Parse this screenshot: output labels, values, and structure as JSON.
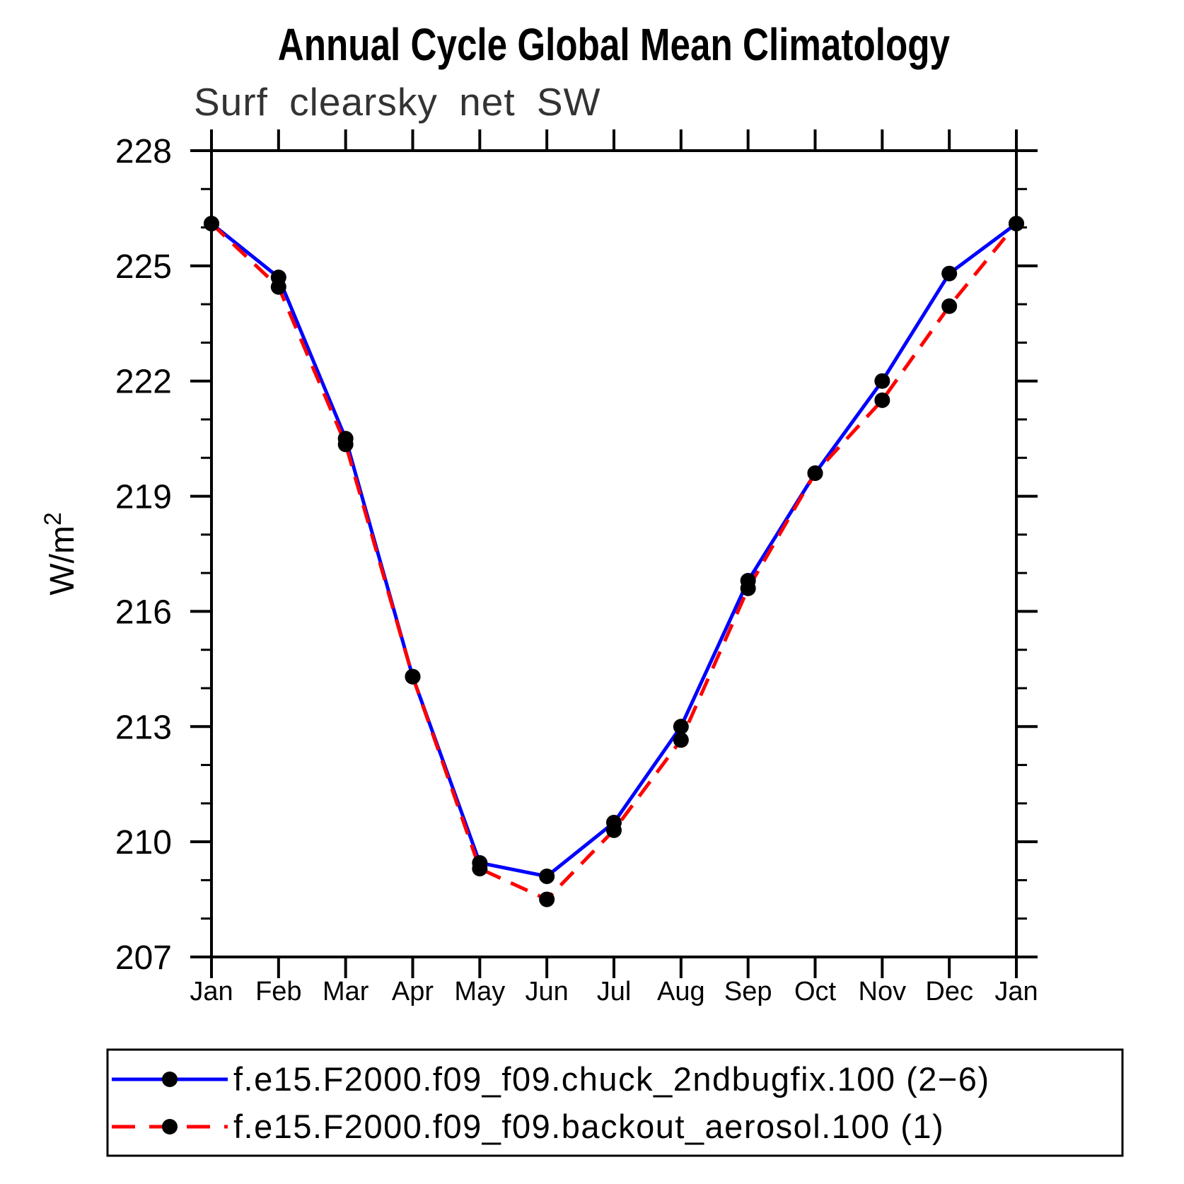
{
  "page": {
    "background": "#ffffff"
  },
  "header": {
    "title": "Annual Cycle Global Mean Climatology",
    "subtitle": "Surf clearsky net SW"
  },
  "y_axis": {
    "unit_base": "W/m",
    "unit_exponent": "2"
  },
  "chart_data": {
    "type": "line",
    "title": "Annual Cycle Global Mean Climatology",
    "subtitle": "Surf clearsky net SW",
    "ylabel": "W/m^2",
    "xlabel": "",
    "categories": [
      "Jan",
      "Feb",
      "Mar",
      "Apr",
      "May",
      "Jun",
      "Jul",
      "Aug",
      "Sep",
      "Oct",
      "Nov",
      "Dec",
      "Jan"
    ],
    "ylim": [
      207,
      228
    ],
    "y_major_ticks": [
      207,
      210,
      213,
      216,
      219,
      222,
      225,
      228
    ],
    "y_minor_step": 1,
    "grid": false,
    "legend_position": "bottom",
    "axis_color": "#000000",
    "marker_color": "#000000",
    "series": [
      {
        "name": "f.e15.F2000.f09_f09.chuck_2ndbugfix.100 (2−6)",
        "color": "#0000ff",
        "line_style": "solid",
        "marker": "filled-circle",
        "values": [
          226.1,
          224.7,
          220.5,
          214.3,
          209.45,
          209.1,
          210.5,
          213.0,
          216.8,
          219.6,
          222.0,
          224.8,
          226.1
        ]
      },
      {
        "name": "f.e15.F2000.f09_f09.backout_aerosol.100 (1)",
        "color": "#ff0000",
        "line_style": "dashed",
        "marker": "filled-circle",
        "values": [
          226.1,
          224.45,
          220.35,
          214.3,
          209.3,
          208.5,
          210.3,
          212.65,
          216.6,
          219.6,
          221.5,
          223.95,
          226.1
        ]
      }
    ]
  }
}
